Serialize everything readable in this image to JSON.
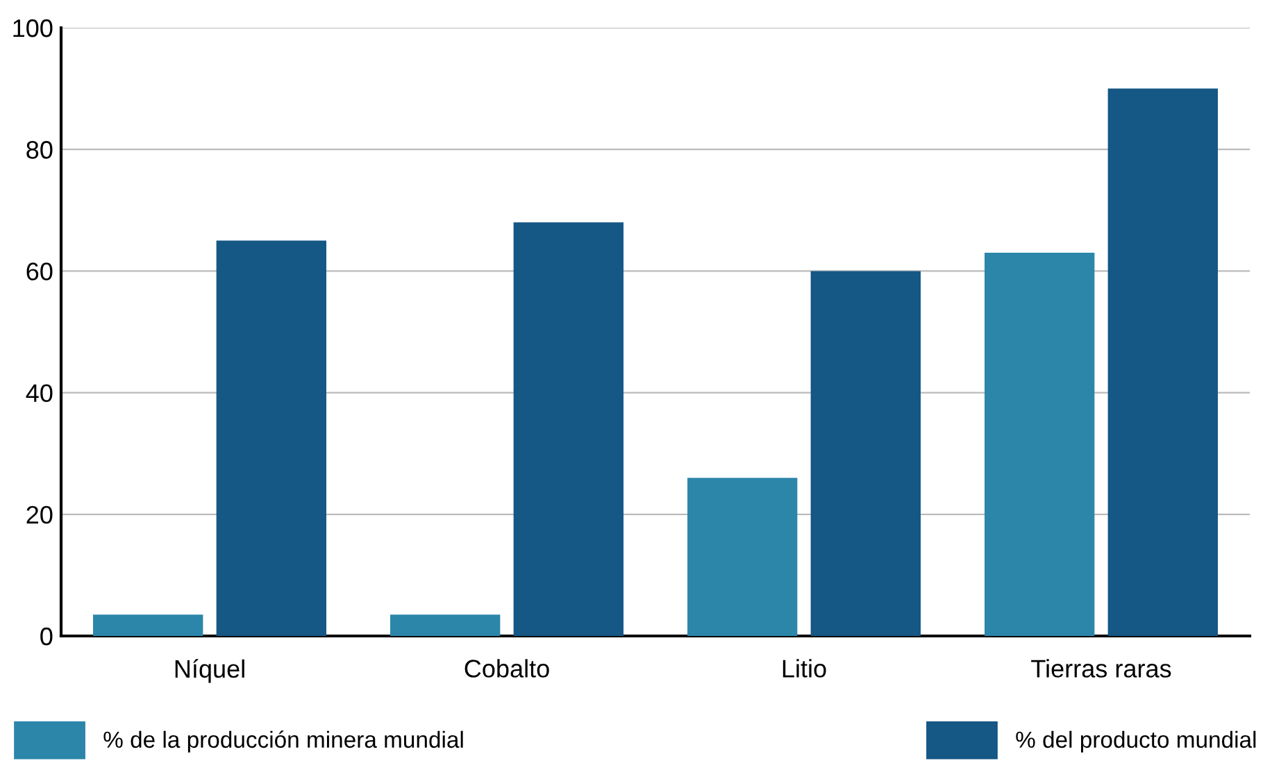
{
  "chart_data": {
    "type": "bar",
    "categories": [
      "Níquel",
      "Cobalto",
      "Litio",
      "Tierras raras"
    ],
    "series": [
      {
        "name": "% de la producción minera mundial",
        "color": "#2c86aa",
        "values": [
          3.5,
          3.5,
          26,
          63
        ]
      },
      {
        "name": "% del producto mundial",
        "color": "#155785",
        "values": [
          65,
          68,
          60,
          90
        ]
      }
    ],
    "ylim": [
      0,
      100
    ],
    "yticks": [
      0,
      20,
      40,
      60,
      80,
      100
    ],
    "grid": "y",
    "legend": "bottom"
  }
}
